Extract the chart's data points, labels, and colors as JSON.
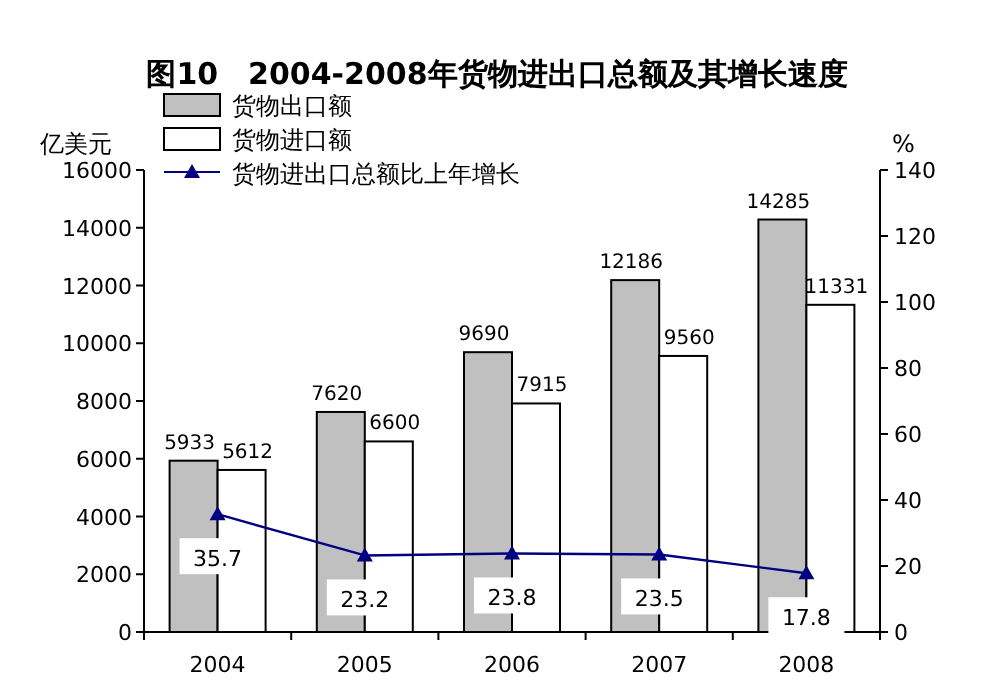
{
  "chart_data": {
    "type": "bar",
    "title": "图10　2004-2008年货物进出口总额及其增长速度",
    "ylabel": "亿美元",
    "y2label": "%",
    "categories": [
      "2004",
      "2005",
      "2006",
      "2007",
      "2008"
    ],
    "series": [
      {
        "name": "货物出口额",
        "color": "#c0c0c0",
        "values": [
          5933,
          7620,
          9690,
          12186,
          14285
        ]
      },
      {
        "name": "货物进口额",
        "color": "#ffffff",
        "values": [
          5612,
          6600,
          7915,
          9560,
          11331
        ]
      },
      {
        "name": "货物进出口总额比上年增长",
        "type": "line",
        "axis": "y2",
        "color": "#000080",
        "marker": "triangle",
        "values": [
          35.7,
          23.2,
          23.8,
          23.5,
          17.8
        ]
      }
    ],
    "ylim": [
      0,
      16000
    ],
    "yticks": [
      0,
      2000,
      4000,
      6000,
      8000,
      10000,
      12000,
      14000,
      16000
    ],
    "y2lim": [
      0,
      140
    ],
    "y2ticks": [
      0,
      20,
      40,
      60,
      80,
      100,
      120,
      140
    ],
    "data_labels": true,
    "legend": "top left"
  }
}
